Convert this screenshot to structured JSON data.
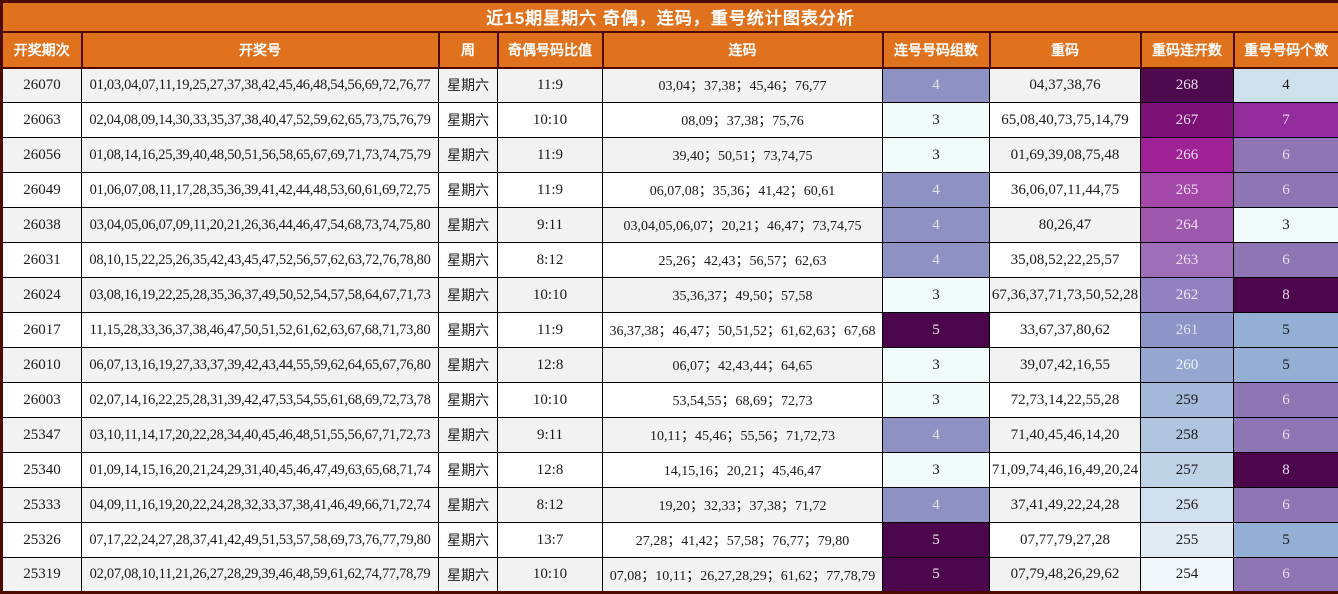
{
  "title": "近15期星期六 奇偶，连码，重号统计图表分析",
  "colors": {
    "header_orange": "#e0711d",
    "frame_maroon": "#4d0b00",
    "grid_black": "#000000",
    "row_alt_gray": "#f2f2f2",
    "row_white": "#ffffff",
    "header_text": "#ffffff"
  },
  "styles": {
    "groups_colors": {
      "3": {
        "bg": "#f2fbfb",
        "fg": "#1a1a1a"
      },
      "4": {
        "bg": "#8d92c3",
        "fg": "#e2e4f0"
      },
      "5": {
        "bg": "#4c064b",
        "fg": "#f0e4f0"
      }
    },
    "streak_colors": {
      "268": {
        "bg": "#4d0a4f",
        "fg": "#eedcee"
      },
      "267": {
        "bg": "#7c1175",
        "fg": "#eedcee"
      },
      "266": {
        "bg": "#9e2195",
        "fg": "#eedcee"
      },
      "265": {
        "bg": "#a347a8",
        "fg": "#eedcee"
      },
      "264": {
        "bg": "#9d58ae",
        "fg": "#eedcee"
      },
      "263": {
        "bg": "#9f6eb8",
        "fg": "#e8dcf0"
      },
      "262": {
        "bg": "#9181c1",
        "fg": "#eceaf6"
      },
      "261": {
        "bg": "#8e95c8",
        "fg": "#dde3f4"
      },
      "260": {
        "bg": "#95a7d1",
        "fg": "#eef3fb"
      },
      "259": {
        "bg": "#a5bada",
        "fg": "#1a1a1a"
      },
      "258": {
        "bg": "#b0c6e0",
        "fg": "#1a1a1a"
      },
      "257": {
        "bg": "#bfd2e6",
        "fg": "#1a1a1a"
      },
      "256": {
        "bg": "#d0dfee",
        "fg": "#1a1a1a"
      },
      "255": {
        "bg": "#e0ebf4",
        "fg": "#1a1a1a"
      },
      "254": {
        "bg": "#f0f8fb",
        "fg": "#1a1a1a"
      }
    },
    "count_colors": {
      "3": {
        "bg": "#f2fbfc",
        "fg": "#1a1a1a"
      },
      "4": {
        "bg": "#cfe0ed",
        "fg": "#1a1a1a"
      },
      "5": {
        "bg": "#93afd3",
        "fg": "#1a1a1a"
      },
      "6": {
        "bg": "#8e76b4",
        "fg": "#e4def0"
      },
      "7": {
        "bg": "#932d9b",
        "fg": "#e8d8ec"
      },
      "8": {
        "bg": "#4c064b",
        "fg": "#e8dcea"
      }
    }
  },
  "chart_data": {
    "type": "table",
    "title": "近15期星期六 奇偶，连码，重号统计图表分析",
    "columns": [
      "开奖期次",
      "开奖号",
      "周",
      "奇偶号码比值",
      "连码",
      "连号号码组数",
      "重码",
      "重码连开数",
      "重号号码个数"
    ],
    "rows": [
      {
        "period": "26070",
        "numbers": "01,03,04,07,11,19,25,27,37,38,42,45,46,48,54,56,69,72,76,77",
        "week": "星期六",
        "ratio": "11:9",
        "consecutive": "03,04；37,38；45,46；76,77",
        "groups": "4",
        "repeat": "04,37,38,76",
        "streak": "268",
        "count": "4"
      },
      {
        "period": "26063",
        "numbers": "02,04,08,09,14,30,33,35,37,38,40,47,52,59,62,65,73,75,76,79",
        "week": "星期六",
        "ratio": "10:10",
        "consecutive": "08,09；37,38；75,76",
        "groups": "3",
        "repeat": "65,08,40,73,75,14,79",
        "streak": "267",
        "count": "7"
      },
      {
        "period": "26056",
        "numbers": "01,08,14,16,25,39,40,48,50,51,56,58,65,67,69,71,73,74,75,79",
        "week": "星期六",
        "ratio": "11:9",
        "consecutive": "39,40；50,51；73,74,75",
        "groups": "3",
        "repeat": "01,69,39,08,75,48",
        "streak": "266",
        "count": "6"
      },
      {
        "period": "26049",
        "numbers": "01,06,07,08,11,17,28,35,36,39,41,42,44,48,53,60,61,69,72,75",
        "week": "星期六",
        "ratio": "11:9",
        "consecutive": "06,07,08；35,36；41,42；60,61",
        "groups": "4",
        "repeat": "36,06,07,11,44,75",
        "streak": "265",
        "count": "6"
      },
      {
        "period": "26038",
        "numbers": "03,04,05,06,07,09,11,20,21,26,36,44,46,47,54,68,73,74,75,80",
        "week": "星期六",
        "ratio": "9:11",
        "consecutive": "03,04,05,06,07；20,21；46,47；73,74,75",
        "groups": "4",
        "repeat": "80,26,47",
        "streak": "264",
        "count": "3"
      },
      {
        "period": "26031",
        "numbers": "08,10,15,22,25,26,35,42,43,45,47,52,56,57,62,63,72,76,78,80",
        "week": "星期六",
        "ratio": "8:12",
        "consecutive": "25,26；42,43；56,57；62,63",
        "groups": "4",
        "repeat": "35,08,52,22,25,57",
        "streak": "263",
        "count": "6"
      },
      {
        "period": "26024",
        "numbers": "03,08,16,19,22,25,28,35,36,37,49,50,52,54,57,58,64,67,71,73",
        "week": "星期六",
        "ratio": "10:10",
        "consecutive": "35,36,37；49,50；57,58",
        "groups": "3",
        "repeat": "67,36,37,71,73,50,52,28",
        "streak": "262",
        "count": "8"
      },
      {
        "period": "26017",
        "numbers": "11,15,28,33,36,37,38,46,47,50,51,52,61,62,63,67,68,71,73,80",
        "week": "星期六",
        "ratio": "11:9",
        "consecutive": "36,37,38；46,47；50,51,52；61,62,63；67,68",
        "groups": "5",
        "repeat": "33,67,37,80,62",
        "streak": "261",
        "count": "5"
      },
      {
        "period": "26010",
        "numbers": "06,07,13,16,19,27,33,37,39,42,43,44,55,59,62,64,65,67,76,80",
        "week": "星期六",
        "ratio": "12:8",
        "consecutive": "06,07；42,43,44；64,65",
        "groups": "3",
        "repeat": "39,07,42,16,55",
        "streak": "260",
        "count": "5"
      },
      {
        "period": "26003",
        "numbers": "02,07,14,16,22,25,28,31,39,42,47,53,54,55,61,68,69,72,73,78",
        "week": "星期六",
        "ratio": "10:10",
        "consecutive": "53,54,55；68,69；72,73",
        "groups": "3",
        "repeat": "72,73,14,22,55,28",
        "streak": "259",
        "count": "6"
      },
      {
        "period": "25347",
        "numbers": "03,10,11,14,17,20,22,28,34,40,45,46,48,51,55,56,67,71,72,73",
        "week": "星期六",
        "ratio": "9:11",
        "consecutive": "10,11；45,46；55,56；71,72,73",
        "groups": "4",
        "repeat": "71,40,45,46,14,20",
        "streak": "258",
        "count": "6"
      },
      {
        "period": "25340",
        "numbers": "01,09,14,15,16,20,21,24,29,31,40,45,46,47,49,63,65,68,71,74",
        "week": "星期六",
        "ratio": "12:8",
        "consecutive": "14,15,16；20,21；45,46,47",
        "groups": "3",
        "repeat": "71,09,74,46,16,49,20,24",
        "streak": "257",
        "count": "8"
      },
      {
        "period": "25333",
        "numbers": "04,09,11,16,19,20,22,24,28,32,33,37,38,41,46,49,66,71,72,74",
        "week": "星期六",
        "ratio": "8:12",
        "consecutive": "19,20；32,33；37,38；71,72",
        "groups": "4",
        "repeat": "37,41,49,22,24,28",
        "streak": "256",
        "count": "6"
      },
      {
        "period": "25326",
        "numbers": "07,17,22,24,27,28,37,41,42,49,51,53,57,58,69,73,76,77,79,80",
        "week": "星期六",
        "ratio": "13:7",
        "consecutive": "27,28；41,42；57,58；76,77；79,80",
        "groups": "5",
        "repeat": "07,77,79,27,28",
        "streak": "255",
        "count": "5"
      },
      {
        "period": "25319",
        "numbers": "02,07,08,10,11,21,26,27,28,29,39,46,48,59,61,62,74,77,78,79",
        "week": "星期六",
        "ratio": "10:10",
        "consecutive": "07,08；10,11；26,27,28,29；61,62；77,78,79",
        "groups": "5",
        "repeat": "07,79,48,26,29,62",
        "streak": "254",
        "count": "6"
      }
    ]
  }
}
